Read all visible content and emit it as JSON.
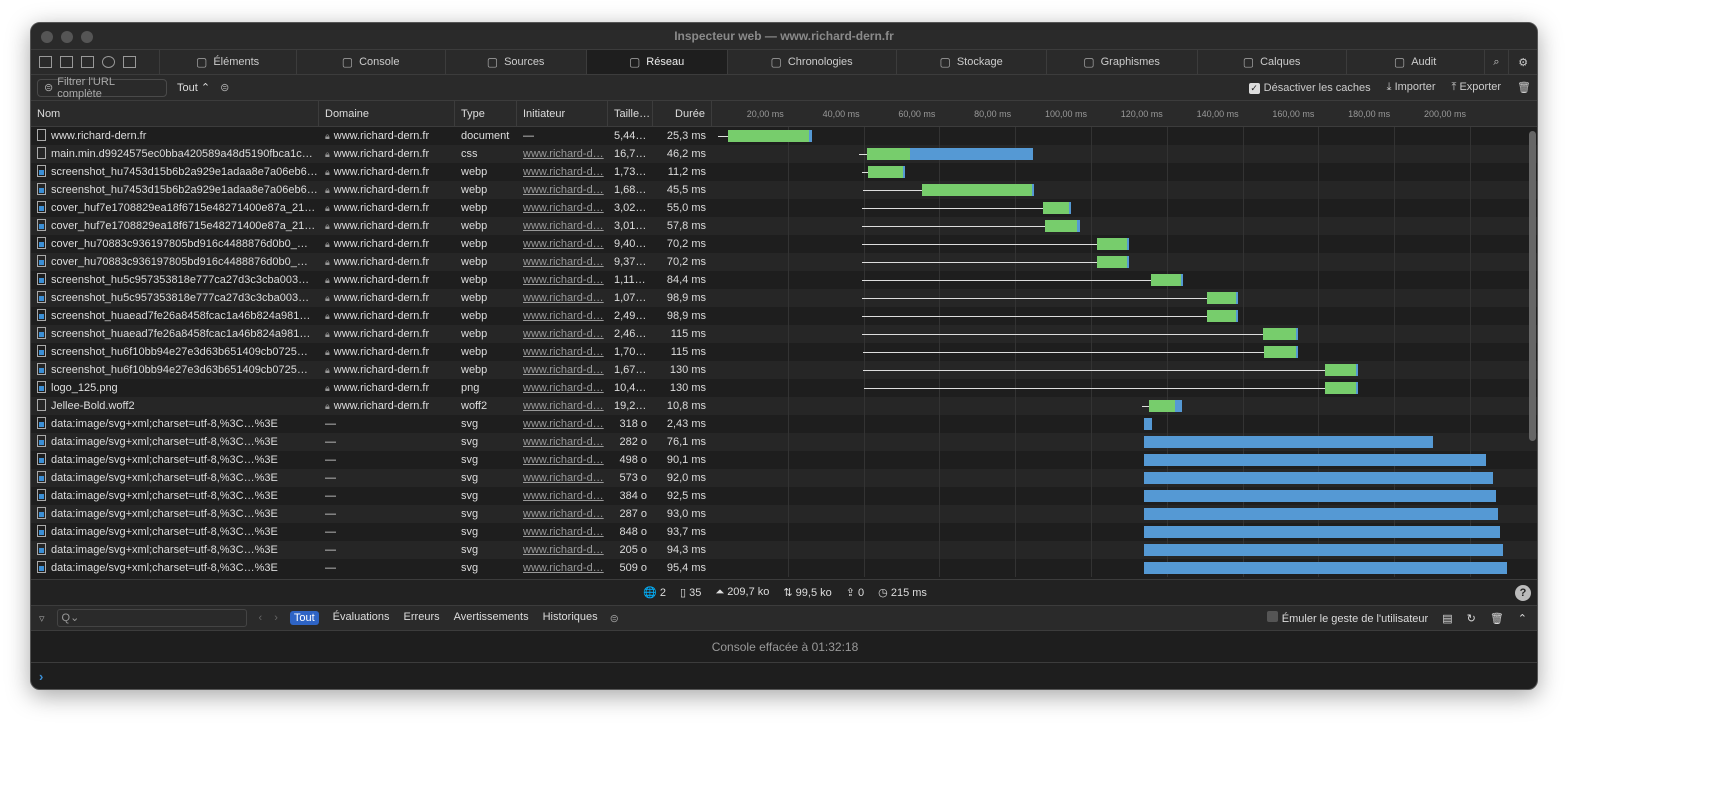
{
  "window": {
    "title": "Inspecteur web — www.richard-dern.fr"
  },
  "tabs": [
    {
      "label": "Éléments",
      "icon": "elements-icon"
    },
    {
      "label": "Console",
      "icon": "console-icon"
    },
    {
      "label": "Sources",
      "icon": "sources-icon"
    },
    {
      "label": "Réseau",
      "icon": "network-icon",
      "active": true
    },
    {
      "label": "Chronologies",
      "icon": "timelines-icon"
    },
    {
      "label": "Stockage",
      "icon": "storage-icon"
    },
    {
      "label": "Graphismes",
      "icon": "graphics-icon"
    },
    {
      "label": "Calques",
      "icon": "layers-icon"
    },
    {
      "label": "Audit",
      "icon": "audit-icon"
    }
  ],
  "filter": {
    "placeholder": "Filtrer l'URL complète",
    "type": "Tout",
    "disable_cache": "Désactiver les caches",
    "disable_cache_checked": true,
    "import": "Importer",
    "export": "Exporter"
  },
  "columns": [
    "Nom",
    "Domaine",
    "Type",
    "Initiateur",
    "Taille…",
    "Durée"
  ],
  "waterfall": {
    "ticks": [
      "20,00 ms",
      "40,00 ms",
      "60,00 ms",
      "80,00 ms",
      "100,00 ms",
      "120,00 ms",
      "140,00 ms",
      "160,00 ms",
      "180,00 ms",
      "200,00 ms"
    ],
    "wait_color": "#77cd6c",
    "receive_color": "#5599d4"
  },
  "rows": [
    {
      "name": "www.richard-dern.fr",
      "domain": "www.richard-dern.fr",
      "type": "document",
      "initiator": "—",
      "size": "5,44 …",
      "duration": "25,3 ms",
      "t": [
        1.6,
        4.2,
        25.6,
        26.4
      ]
    },
    {
      "name": "main.min.d9924575ec0bba420589a48d5190fbca1c…",
      "domain": "www.richard-dern.fr",
      "type": "css",
      "initiator": "www.richard-d…",
      "size": "16,77…",
      "duration": "46,2 ms",
      "t": [
        38.8,
        40.9,
        52.2,
        84.7
      ]
    },
    {
      "name": "screenshot_hu7453d15b6b2a929e1adaa8e7a06eb6…",
      "domain": "www.richard-dern.fr",
      "type": "webp",
      "initiator": "www.richard-d…",
      "size": "1,73 ko",
      "duration": "11,2 ms",
      "t": [
        39.6,
        41.2,
        50.4,
        50.9
      ]
    },
    {
      "name": "screenshot_hu7453d15b6b2a929e1adaa8e7a06eb6…",
      "domain": "www.richard-dern.fr",
      "type": "webp",
      "initiator": "www.richard-d…",
      "size": "1,68 ko",
      "duration": "45,5 ms",
      "t": [
        39.8,
        55.4,
        84.4,
        85.0
      ]
    },
    {
      "name": "cover_huf7e1708829ea18f6715e48271400e87a_21…",
      "domain": "www.richard-dern.fr",
      "type": "webp",
      "initiator": "www.richard-d…",
      "size": "3,02 …",
      "duration": "55,0 ms",
      "t": [
        39.6,
        87.3,
        94.2,
        94.7
      ]
    },
    {
      "name": "cover_huf7e1708829ea18f6715e48271400e87a_21…",
      "domain": "www.richard-dern.fr",
      "type": "webp",
      "initiator": "www.richard-d…",
      "size": "3,01 ko",
      "duration": "57,8 ms",
      "t": [
        39.6,
        87.9,
        96.3,
        97.1
      ]
    },
    {
      "name": "cover_hu70883c936197805bd916c4488876d0b0_…",
      "domain": "www.richard-dern.fr",
      "type": "webp",
      "initiator": "www.richard-d…",
      "size": "9,40 …",
      "duration": "70,2 ms",
      "t": [
        39.6,
        101.6,
        109.5,
        110.0
      ]
    },
    {
      "name": "cover_hu70883c936197805bd916c4488876d0b0_…",
      "domain": "www.richard-dern.fr",
      "type": "webp",
      "initiator": "www.richard-d…",
      "size": "9,37 …",
      "duration": "70,2 ms",
      "t": [
        39.6,
        101.6,
        109.5,
        110.0
      ]
    },
    {
      "name": "screenshot_hu5c957353818e777ca27d3c3cba003…",
      "domain": "www.richard-dern.fr",
      "type": "webp",
      "initiator": "www.richard-d…",
      "size": "1,11 ko",
      "duration": "84,4 ms",
      "t": [
        39.6,
        115.8,
        123.7,
        124.3
      ]
    },
    {
      "name": "screenshot_hu5c957353818e777ca27d3c3cba003…",
      "domain": "www.richard-dern.fr",
      "type": "webp",
      "initiator": "www.richard-d…",
      "size": "1,07 ko",
      "duration": "98,9 ms",
      "t": [
        39.6,
        130.6,
        138.3,
        138.8
      ]
    },
    {
      "name": "screenshot_huaead7fe26a8458fcac1a46b824a981…",
      "domain": "www.richard-dern.fr",
      "type": "webp",
      "initiator": "www.richard-d…",
      "size": "2,49 …",
      "duration": "98,9 ms",
      "t": [
        39.6,
        130.6,
        138.3,
        138.8
      ]
    },
    {
      "name": "screenshot_huaead7fe26a8458fcac1a46b824a981…",
      "domain": "www.richard-dern.fr",
      "type": "webp",
      "initiator": "www.richard-d…",
      "size": "2,46 …",
      "duration": "115 ms",
      "t": [
        39.6,
        145.4,
        154.1,
        154.6
      ]
    },
    {
      "name": "screenshot_hu6f10bb94e27e3d63b651409cb0725…",
      "domain": "www.richard-dern.fr",
      "type": "webp",
      "initiator": "www.richard-d…",
      "size": "1,70 ko",
      "duration": "115 ms",
      "t": [
        39.8,
        145.6,
        154.1,
        154.6
      ]
    },
    {
      "name": "screenshot_hu6f10bb94e27e3d63b651409cb0725…",
      "domain": "www.richard-dern.fr",
      "type": "webp",
      "initiator": "www.richard-d…",
      "size": "1,67 ko",
      "duration": "130 ms",
      "t": [
        39.8,
        161.7,
        169.9,
        170.5
      ]
    },
    {
      "name": "logo_125.png",
      "domain": "www.richard-dern.fr",
      "type": "png",
      "initiator": "www.richard-d…",
      "size": "10,49…",
      "duration": "130 ms",
      "t": [
        40.1,
        161.7,
        169.9,
        170.5
      ]
    },
    {
      "name": "Jellee-Bold.woff2",
      "domain": "www.richard-dern.fr",
      "type": "woff2",
      "initiator": "www.richard-d…",
      "size": "19,26…",
      "duration": "10,8 ms",
      "t": [
        113.5,
        115.3,
        122.2,
        124.0
      ]
    },
    {
      "name": "data:image/svg+xml;charset=utf-8,%3C…%3E",
      "domain": "—",
      "type": "svg",
      "initiator": "www.richard-d…",
      "size": "318 o",
      "duration": "2,43 ms",
      "t": [
        114.0,
        114.0,
        114.0,
        116.1
      ]
    },
    {
      "name": "data:image/svg+xml;charset=utf-8,%3C…%3E",
      "domain": "—",
      "type": "svg",
      "initiator": "www.richard-d…",
      "size": "282 o",
      "duration": "76,1 ms",
      "t": [
        114.0,
        114.0,
        114.0,
        190.2
      ]
    },
    {
      "name": "data:image/svg+xml;charset=utf-8,%3C…%3E",
      "domain": "—",
      "type": "svg",
      "initiator": "www.richard-d…",
      "size": "498 o",
      "duration": "90,1 ms",
      "t": [
        114.0,
        114.0,
        114.0,
        204.2
      ]
    },
    {
      "name": "data:image/svg+xml;charset=utf-8,%3C…%3E",
      "domain": "—",
      "type": "svg",
      "initiator": "www.richard-d…",
      "size": "573 o",
      "duration": "92,0 ms",
      "t": [
        114.0,
        114.0,
        114.0,
        206.1
      ]
    },
    {
      "name": "data:image/svg+xml;charset=utf-8,%3C…%3E",
      "domain": "—",
      "type": "svg",
      "initiator": "www.richard-d…",
      "size": "384 o",
      "duration": "92,5 ms",
      "t": [
        114.0,
        114.0,
        114.0,
        206.9
      ]
    },
    {
      "name": "data:image/svg+xml;charset=utf-8,%3C…%3E",
      "domain": "—",
      "type": "svg",
      "initiator": "www.richard-d…",
      "size": "287 o",
      "duration": "93,0 ms",
      "t": [
        114.0,
        114.0,
        114.0,
        207.4
      ]
    },
    {
      "name": "data:image/svg+xml;charset=utf-8,%3C…%3E",
      "domain": "—",
      "type": "svg",
      "initiator": "www.richard-d…",
      "size": "848 o",
      "duration": "93,7 ms",
      "t": [
        114.0,
        114.0,
        114.0,
        208.0
      ]
    },
    {
      "name": "data:image/svg+xml;charset=utf-8,%3C…%3E",
      "domain": "—",
      "type": "svg",
      "initiator": "www.richard-d…",
      "size": "205 o",
      "duration": "94,3 ms",
      "t": [
        114.0,
        114.0,
        114.0,
        208.7
      ]
    },
    {
      "name": "data:image/svg+xml;charset=utf-8,%3C…%3E",
      "domain": "—",
      "type": "svg",
      "initiator": "www.richard-d…",
      "size": "509 o",
      "duration": "95,4 ms",
      "t": [
        114.0,
        114.0,
        114.0,
        209.8
      ]
    }
  ],
  "summary": {
    "domains": "2",
    "resources": "35",
    "transferred": "209,7 ko",
    "size": "99,5 ko",
    "redirects": "0",
    "time": "215 ms"
  },
  "console": {
    "filters": [
      "Tout",
      "Évaluations",
      "Erreurs",
      "Avertissements",
      "Historiques"
    ],
    "emulate": "Émuler le geste de l'utilisateur",
    "message": "Console effacée à 01:32:18",
    "prompt": "›"
  }
}
